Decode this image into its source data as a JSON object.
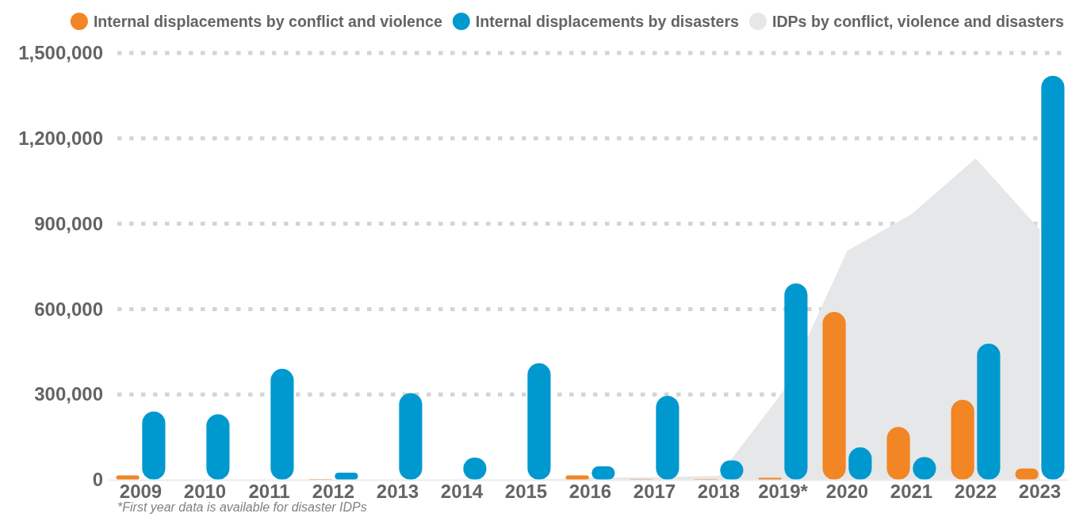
{
  "chart_data": {
    "type": "bar",
    "categories": [
      "2009",
      "2010",
      "2011",
      "2012",
      "2013",
      "2014",
      "2015",
      "2016",
      "2017",
      "2018",
      "2019*",
      "2020",
      "2021",
      "2022",
      "2023"
    ],
    "series": [
      {
        "name": "Internal displacements by conflict and violence",
        "color": "#f28524",
        "values": [
          15000,
          null,
          null,
          2000,
          null,
          null,
          null,
          15000,
          2000,
          3000,
          7000,
          590000,
          186000,
          281000,
          40000
        ]
      },
      {
        "name": "Internal displacements by disasters",
        "color": "#0099cf",
        "values": [
          240000,
          230000,
          390000,
          25000,
          305000,
          78000,
          410000,
          47000,
          295000,
          68000,
          690000,
          114000,
          80000,
          479000,
          1420000
        ]
      },
      {
        "name": "IDPs by conflict, violence and disasters",
        "type": "area",
        "color": "#e6e7e8",
        "values": [
          null,
          null,
          null,
          null,
          null,
          null,
          0,
          6000,
          9000,
          14000,
          310000,
          805000,
          933000,
          1130000,
          880000
        ]
      }
    ],
    "ylim": [
      0,
      1500000
    ],
    "yticks": [
      0,
      {
        "value": 300000,
        "label": "300,000"
      },
      {
        "value": 600000,
        "label": "600,000"
      },
      {
        "value": 900000,
        "label": "900,000"
      },
      {
        "value": 1200000,
        "label": "1,200,000"
      },
      {
        "value": 1500000,
        "label": "1,500,000"
      }
    ],
    "grid": "y",
    "legend": "top",
    "annotations": [
      "*First year data is available for disaster IDPs"
    ]
  }
}
